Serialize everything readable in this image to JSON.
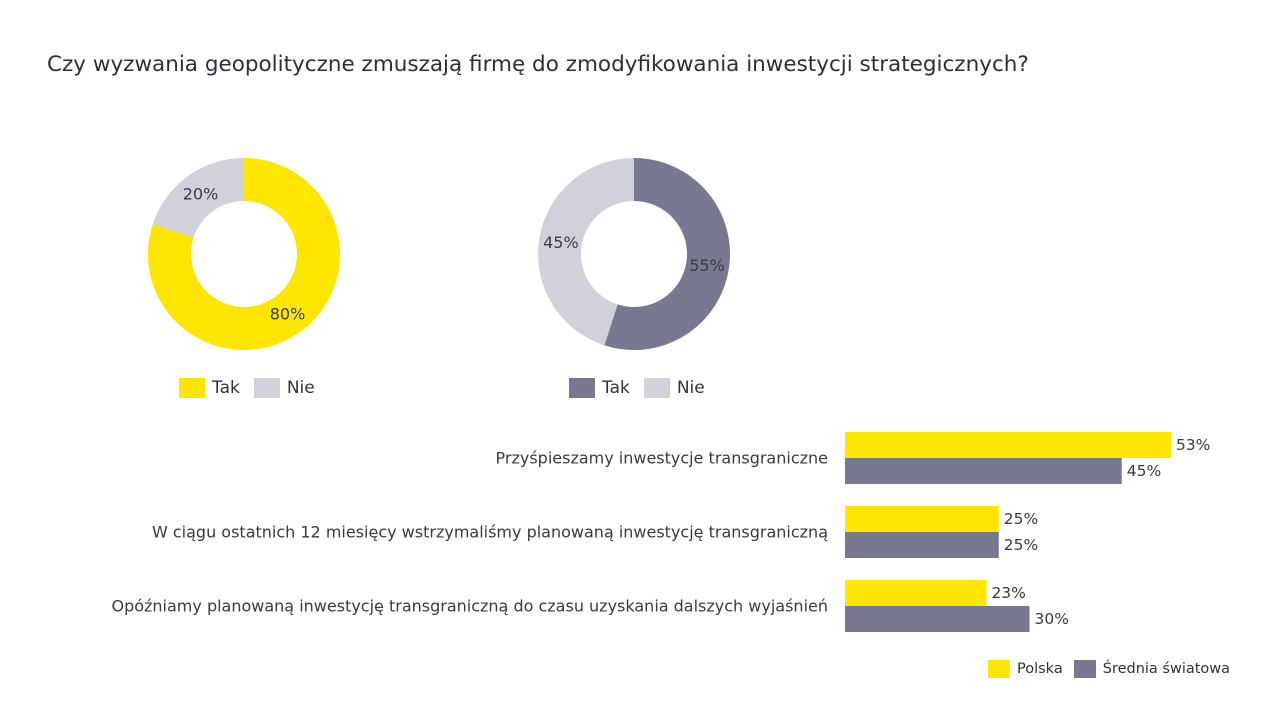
{
  "title": "Czy wyzwania geopolityczne zmuszają firmę do zmodyfikowania inwestycji strategicznych?",
  "colors": {
    "yellow": "#FFE600",
    "gray_dark": "#787890",
    "gray_light": "#D1D1D9"
  },
  "chart_data": [
    {
      "type": "pie",
      "variant": "donut",
      "slices": [
        {
          "label": "Tak",
          "value": 80,
          "display": "80%",
          "color": "#FFE600"
        },
        {
          "label": "Nie",
          "value": 20,
          "display": "20%",
          "color": "#D1D1D9"
        }
      ],
      "legend": [
        "Tak",
        "Nie"
      ]
    },
    {
      "type": "pie",
      "variant": "donut",
      "slices": [
        {
          "label": "Tak",
          "value": 55,
          "display": "55%",
          "color": "#787890"
        },
        {
          "label": "Nie",
          "value": 45,
          "display": "45%",
          "color": "#D1D1D9"
        }
      ],
      "legend": [
        "Tak",
        "Nie"
      ]
    },
    {
      "type": "bar",
      "orientation": "horizontal",
      "categories": [
        "Przyśpieszamy inwestycje transgraniczne",
        "W ciągu ostatnich 12 miesięcy wstrzymaliśmy planowaną inwestycję transgraniczną",
        "Opóźniamy planowaną inwestycję transgraniczną do czasu uzyskania dalszych wyjaśnień"
      ],
      "series": [
        {
          "name": "Polska",
          "color": "#FFE600",
          "values": [
            53,
            25,
            23
          ],
          "labels": [
            "53%",
            "25%",
            "23%"
          ]
        },
        {
          "name": "Średnia światowa",
          "color": "#787890",
          "values": [
            45,
            25,
            30
          ],
          "labels": [
            "45%",
            "25%",
            "30%"
          ]
        }
      ],
      "legend_position": "bottom-right"
    }
  ]
}
